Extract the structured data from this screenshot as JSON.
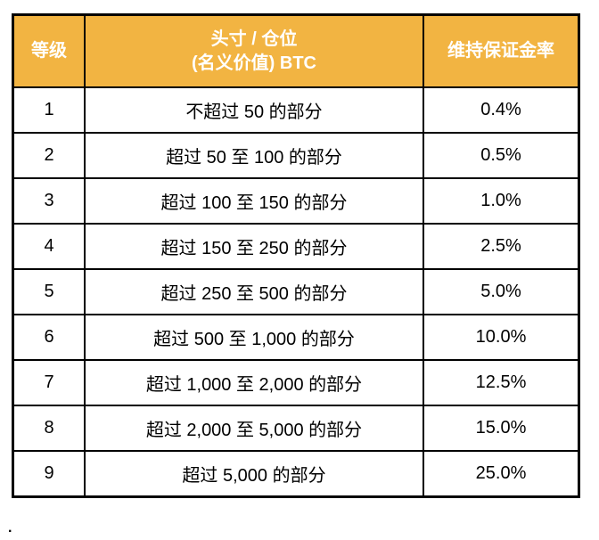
{
  "chart_data": {
    "type": "table",
    "columns": {
      "tier": "等级",
      "position_line1": "头寸 / 仓位",
      "position_line2": "(名义价值) BTC",
      "rate": "维持保证金率"
    },
    "rows": [
      {
        "tier": "1",
        "position": "不超过 50 的部分",
        "rate": "0.4%"
      },
      {
        "tier": "2",
        "position": "超过 50 至 100 的部分",
        "rate": "0.5%"
      },
      {
        "tier": "3",
        "position": "超过 100 至 150 的部分",
        "rate": "1.0%"
      },
      {
        "tier": "4",
        "position": "超过 150 至 250 的部分",
        "rate": "2.5%"
      },
      {
        "tier": "5",
        "position": "超过 250 至 500 的部分",
        "rate": "5.0%"
      },
      {
        "tier": "6",
        "position": "超过 500 至 1,000 的部分",
        "rate": "10.0%"
      },
      {
        "tier": "7",
        "position": "超过 1,000 至 2,000 的部分",
        "rate": "12.5%"
      },
      {
        "tier": "8",
        "position": "超过 2,000 至 5,000 的部分",
        "rate": "15.0%"
      },
      {
        "tier": "9",
        "position": "超过 5,000 的部分",
        "rate": "25.0%"
      }
    ]
  },
  "footer": {
    "text": "."
  },
  "colors": {
    "header_bg": "#F2B442",
    "header_text": "#FFFFFF",
    "body_bg": "#FFFFFF",
    "body_text": "#000000",
    "border": "#000000"
  }
}
